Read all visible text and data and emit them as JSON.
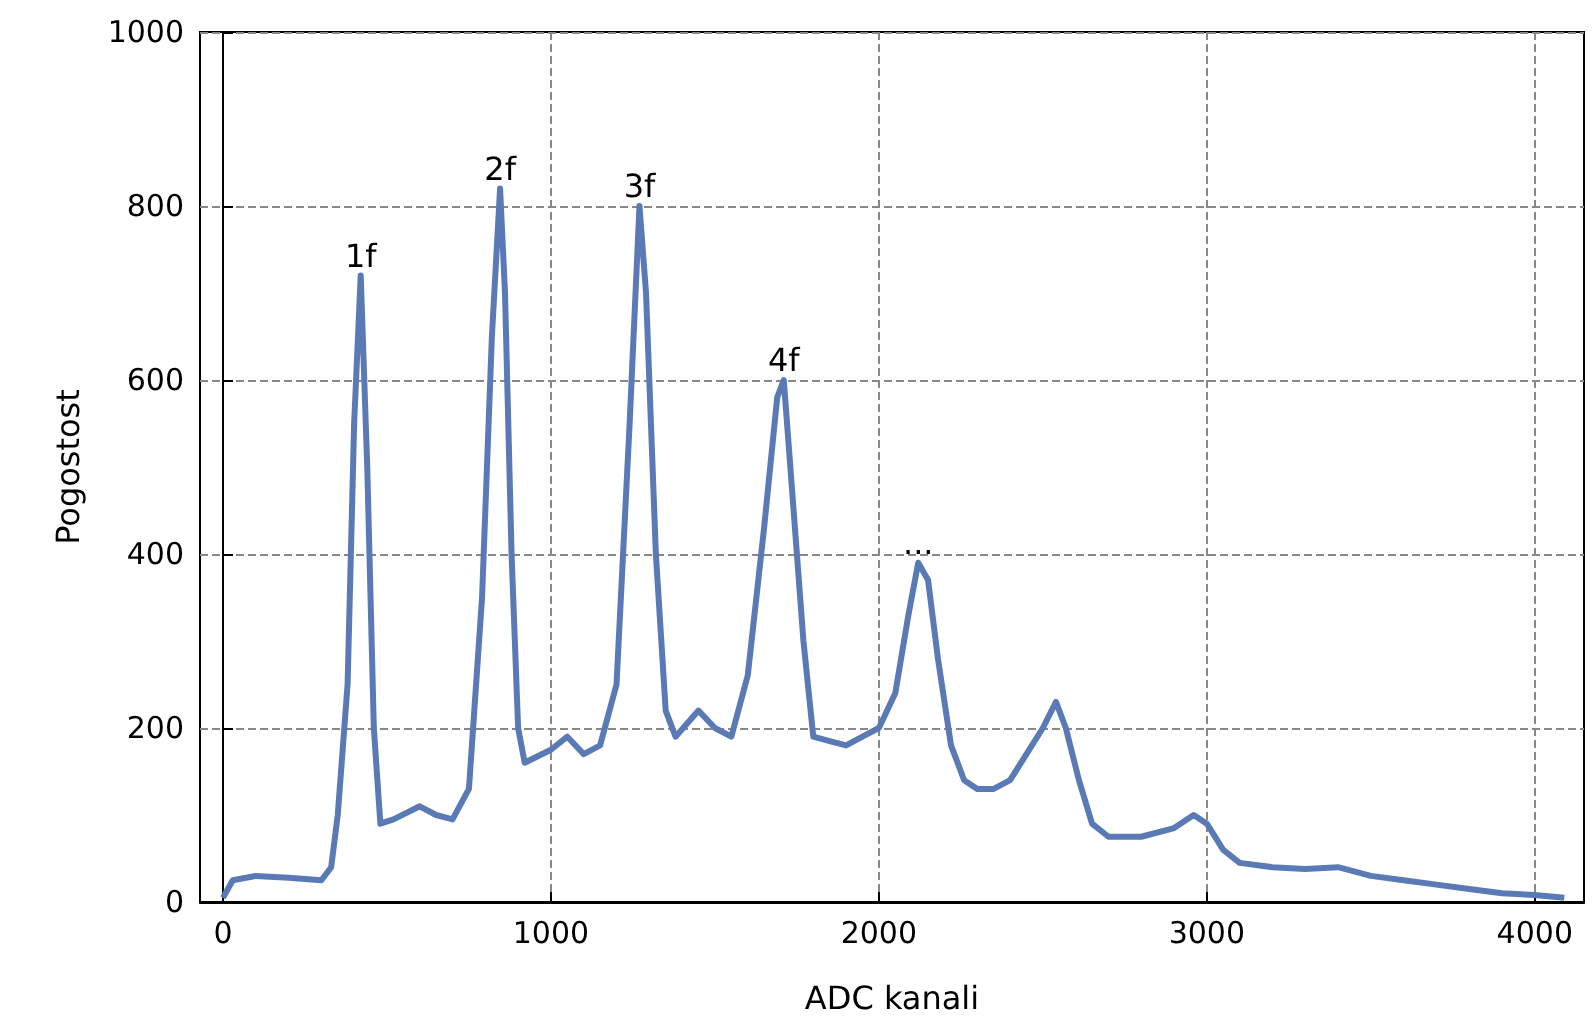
{
  "chart_data": {
    "type": "line",
    "xlabel": "ADC kanali",
    "ylabel": "Pogostost",
    "xlim": [
      -70,
      4150
    ],
    "ylim": [
      0,
      1000
    ],
    "xticks": [
      0,
      1000,
      2000,
      3000,
      4000
    ],
    "yticks": [
      0,
      200,
      400,
      600,
      800,
      1000
    ],
    "grid": true,
    "line_style": "solid",
    "marker": "none",
    "series": [
      {
        "color": "#5a7ab5",
        "x": [
          0,
          30,
          100,
          200,
          300,
          330,
          350,
          380,
          400,
          420,
          440,
          460,
          480,
          520,
          600,
          650,
          700,
          750,
          790,
          820,
          845,
          860,
          880,
          900,
          920,
          1000,
          1050,
          1100,
          1150,
          1200,
          1240,
          1270,
          1290,
          1320,
          1350,
          1380,
          1450,
          1500,
          1550,
          1600,
          1650,
          1690,
          1710,
          1740,
          1770,
          1800,
          1850,
          1900,
          1950,
          2000,
          2050,
          2090,
          2120,
          2150,
          2180,
          2220,
          2260,
          2300,
          2350,
          2400,
          2450,
          2500,
          2540,
          2570,
          2610,
          2650,
          2700,
          2800,
          2900,
          2960,
          3000,
          3050,
          3100,
          3200,
          3300,
          3400,
          3500,
          3600,
          3700,
          3800,
          3900,
          4000,
          4090
        ],
        "values": [
          5,
          25,
          30,
          28,
          25,
          40,
          100,
          250,
          550,
          720,
          500,
          200,
          90,
          95,
          110,
          100,
          95,
          130,
          350,
          650,
          820,
          700,
          400,
          200,
          160,
          175,
          190,
          170,
          180,
          250,
          550,
          800,
          700,
          400,
          220,
          190,
          220,
          200,
          190,
          260,
          430,
          580,
          600,
          450,
          300,
          190,
          185,
          180,
          190,
          200,
          240,
          330,
          390,
          370,
          280,
          180,
          140,
          130,
          130,
          140,
          170,
          200,
          230,
          200,
          140,
          90,
          75,
          75,
          85,
          100,
          90,
          60,
          45,
          40,
          38,
          40,
          30,
          25,
          20,
          15,
          10,
          8,
          5
        ]
      }
    ],
    "annotations": [
      {
        "text": "1f",
        "x": 420,
        "y": 720
      },
      {
        "text": "2f",
        "x": 845,
        "y": 820
      },
      {
        "text": "3f",
        "x": 1270,
        "y": 800
      },
      {
        "text": "4f",
        "x": 1710,
        "y": 600
      },
      {
        "text": "...",
        "x": 2120,
        "y": 390
      }
    ]
  }
}
